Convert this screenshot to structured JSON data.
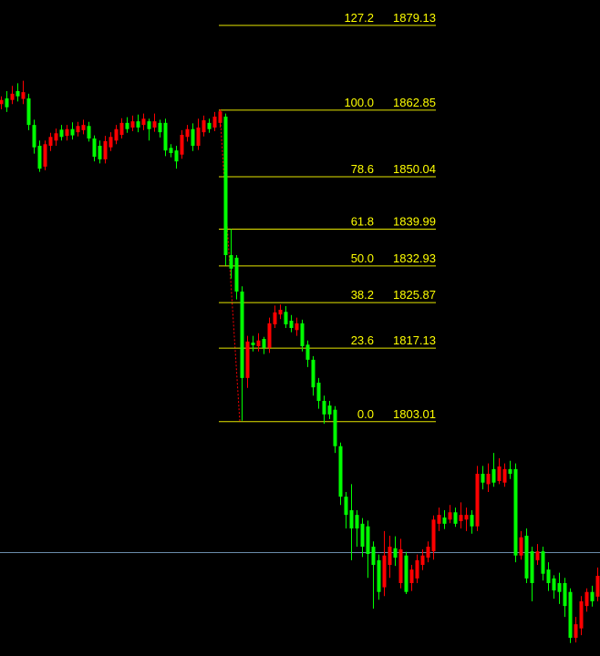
{
  "chart_data": {
    "type": "candlestick",
    "ylim": [
      1758,
      1884
    ],
    "up_color": "#ff0000",
    "down_color": "#00ff00",
    "open": [
      1864.0,
      1865.1,
      1864.8,
      1866.5,
      1865.0,
      1865.1,
      1860.0,
      1856.0,
      1852.0,
      1856.0,
      1857.0,
      1859.1,
      1857.9,
      1859.2,
      1858.6,
      1859.0,
      1859.8,
      1857.4,
      1856.0,
      1853.4,
      1855.7,
      1857.0,
      1858.1,
      1860.4,
      1859.5,
      1860.7,
      1860.0,
      1860.7,
      1859.5,
      1860.4,
      1860.4,
      1855.6,
      1855.1,
      1854.3,
      1857.7,
      1859.2,
      1856.0,
      1858.6,
      1860.4,
      1859.5,
      1860.4,
      1861.6,
      1835.0,
      1834.5,
      1828.0,
      1811.4,
      1818.2,
      1817.5,
      1818.9,
      1817.2,
      1821.7,
      1823.6,
      1824.1,
      1822.4,
      1820.6,
      1821.9,
      1817.8,
      1814.9,
      1810.5,
      1807.0,
      1806.1,
      1805.3,
      1798.3,
      1788.6,
      1786.0,
      1785.1,
      1783.4,
      1782.9,
      1779.0,
      1776.4,
      1771.2,
      1775.5,
      1778.7,
      1772.0,
      1777.3,
      1772.0,
      1772.9,
      1775.5,
      1776.9,
      1778.1,
      1783.4,
      1784.6,
      1784.2,
      1785.6,
      1783.9,
      1784.2,
      1785.1,
      1782.9,
      1793.0,
      1791.0,
      1793.9,
      1791.6,
      1791.3,
      1793.9,
      1793.9,
      1777.3,
      1781.1,
      1778.1,
      1776.4,
      1778.1,
      1774.6,
      1772.9,
      1772.0,
      1772.0,
      1770.3,
      1761.5,
      1763.3,
      1767.6,
      1770.3,
      1769.4
    ],
    "high": [
      1865.5,
      1866.5,
      1867.5,
      1868.0,
      1868.5,
      1866.0,
      1861.0,
      1857.0,
      1857.0,
      1858.5,
      1859.3,
      1860.0,
      1860.0,
      1860.5,
      1860.6,
      1861.0,
      1860.6,
      1858.0,
      1857.0,
      1857.9,
      1858.6,
      1860.0,
      1861.3,
      1861.5,
      1861.8,
      1862.0,
      1862.2,
      1861.2,
      1862.2,
      1861.0,
      1861.2,
      1856.3,
      1856.0,
      1859.0,
      1860.0,
      1860.3,
      1861.2,
      1861.8,
      1861.2,
      1862.5,
      1863.0,
      1862.2,
      1840.0,
      1835.0,
      1829.0,
      1819.5,
      1819.5,
      1820.0,
      1819.3,
      1823.0,
      1825.3,
      1825.5,
      1825.2,
      1823.5,
      1823.0,
      1822.6,
      1818.6,
      1815.6,
      1811.4,
      1808.0,
      1807.0,
      1806.0,
      1799.0,
      1789.5,
      1791.0,
      1786.0,
      1784.5,
      1784.0,
      1780.0,
      1777.5,
      1782.0,
      1781.1,
      1781.0,
      1780.5,
      1778.0,
      1775.5,
      1777.5,
      1778.5,
      1780.0,
      1785.0,
      1786.5,
      1786.0,
      1787.0,
      1786.5,
      1787.5,
      1786.5,
      1786.0,
      1794.5,
      1794.5,
      1795.0,
      1797.0,
      1796.0,
      1795.0,
      1795.5,
      1795.0,
      1782.0,
      1782.5,
      1779.0,
      1779.5,
      1779.0,
      1776.0,
      1773.5,
      1774.0,
      1773.0,
      1771.0,
      1765.5,
      1769.5,
      1771.0,
      1771.5,
      1775.0
    ],
    "low": [
      1863.0,
      1862.5,
      1864.0,
      1864.5,
      1864.0,
      1859.0,
      1854.5,
      1851.0,
      1851.3,
      1855.0,
      1856.0,
      1857.0,
      1857.0,
      1857.2,
      1857.8,
      1858.2,
      1856.8,
      1853.0,
      1852.6,
      1852.6,
      1855.0,
      1856.3,
      1857.4,
      1858.5,
      1858.8,
      1858.6,
      1859.0,
      1857.0,
      1858.7,
      1857.6,
      1854.0,
      1853.8,
      1851.6,
      1853.5,
      1856.8,
      1855.0,
      1855.2,
      1857.8,
      1858.5,
      1858.8,
      1859.5,
      1833.0,
      1830.5,
      1826.5,
      1803.2,
      1809.5,
      1816.5,
      1816.5,
      1816.0,
      1816.2,
      1821.0,
      1822.7,
      1821.0,
      1820.2,
      1819.5,
      1816.5,
      1813.5,
      1808.0,
      1805.5,
      1802.6,
      1803.5,
      1797.0,
      1787.0,
      1782.5,
      1776.4,
      1779.0,
      1777.0,
      1773.0,
      1767.1,
      1768.8,
      1769.5,
      1773.0,
      1775.3,
      1771.0,
      1769.9,
      1770.5,
      1772.0,
      1774.5,
      1776.0,
      1776.5,
      1782.0,
      1782.4,
      1783.5,
      1782.8,
      1782.5,
      1782.0,
      1781.5,
      1782.0,
      1790.0,
      1789.5,
      1790.5,
      1791.0,
      1790.5,
      1792.0,
      1776.0,
      1776.5,
      1772.0,
      1768.5,
      1775.5,
      1772.5,
      1770.5,
      1769.0,
      1768.0,
      1765.5,
      1760.5,
      1760.6,
      1762.0,
      1766.5,
      1767.5,
      1768.5
    ],
    "close": [
      1864.8,
      1863.4,
      1866.0,
      1865.5,
      1866.3,
      1860.0,
      1855.7,
      1851.6,
      1856.3,
      1857.7,
      1858.4,
      1857.7,
      1859.2,
      1858.0,
      1859.8,
      1860.0,
      1857.4,
      1853.9,
      1853.4,
      1856.9,
      1857.7,
      1859.2,
      1860.4,
      1859.2,
      1860.7,
      1859.5,
      1861.2,
      1859.2,
      1860.7,
      1858.6,
      1855.1,
      1854.6,
      1853.0,
      1858.1,
      1859.2,
      1856.0,
      1859.5,
      1860.9,
      1859.2,
      1861.6,
      1862.6,
      1835.0,
      1832.4,
      1828.0,
      1811.4,
      1818.4,
      1817.7,
      1818.6,
      1817.2,
      1821.9,
      1824.0,
      1824.5,
      1821.7,
      1821.0,
      1821.9,
      1817.5,
      1814.9,
      1809.6,
      1807.0,
      1804.4,
      1804.4,
      1798.3,
      1788.6,
      1785.1,
      1782.5,
      1782.5,
      1779.0,
      1777.6,
      1775.5,
      1770.3,
      1777.3,
      1779.0,
      1776.9,
      1778.5,
      1770.3,
      1774.6,
      1776.4,
      1777.3,
      1779.0,
      1784.2,
      1785.1,
      1783.4,
      1785.6,
      1783.4,
      1785.1,
      1785.1,
      1782.9,
      1793.0,
      1791.3,
      1793.0,
      1791.3,
      1794.4,
      1793.9,
      1793.0,
      1777.3,
      1780.8,
      1772.9,
      1772.0,
      1778.1,
      1773.8,
      1772.0,
      1770.6,
      1770.3,
      1767.6,
      1761.5,
      1764.1,
      1768.5,
      1770.3,
      1768.5,
      1773.4
    ],
    "price_line": {
      "value": 1777.87,
      "color": "#6a8cab"
    },
    "fibonacci": {
      "color": "#ffff00",
      "line_color": "#e6e600",
      "anchor_color": "#ff0000",
      "levels": [
        {
          "ratio": 127.2,
          "price": 1879.13
        },
        {
          "ratio": {
            "value": 100,
            "label": "100.0"
          },
          "price": 1862.85
        },
        {
          "ratio": 78.6,
          "price": 1850.04
        },
        {
          "ratio": 61.8,
          "price": 1839.99
        },
        {
          "ratio": {
            "value": 50,
            "label": "50.0"
          },
          "price": 1832.93
        },
        {
          "ratio": 38.2,
          "price": 1825.87
        },
        {
          "ratio": 23.6,
          "price": 1817.13
        },
        {
          "ratio": {
            "value": 0,
            "label": "0.0"
          },
          "price": 1803.01
        }
      ]
    }
  }
}
